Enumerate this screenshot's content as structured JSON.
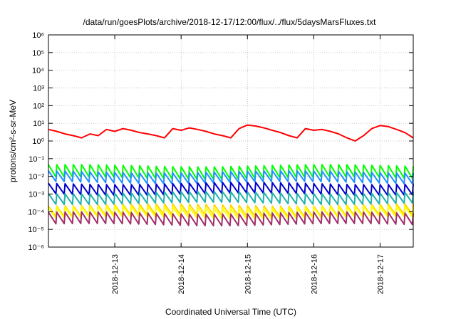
{
  "chart_data": {
    "type": "line",
    "title": "/data/run/goesPlots/archive/2018-12-17/12:00/flux/../flux/5daysMarsFluxes.txt",
    "xlabel": "Coordinated Universal Time (UTC)",
    "ylabel": "protons/cm²-s-sr-MeV",
    "y_scale": "log",
    "ylim": [
      1e-06,
      1000000.0
    ],
    "xlim": [
      "2018-12-12 00:00",
      "2018-12-17 12:00"
    ],
    "y_ticks": [
      {
        "value": 1e-06,
        "label": "10⁻⁶"
      },
      {
        "value": 1e-05,
        "label": "10⁻⁵"
      },
      {
        "value": 0.0001,
        "label": "10⁻⁴"
      },
      {
        "value": 0.001,
        "label": "10⁻³"
      },
      {
        "value": 0.01,
        "label": "10⁻²"
      },
      {
        "value": 0.1,
        "label": "10⁻¹"
      },
      {
        "value": 1,
        "label": "10⁰"
      },
      {
        "value": 10,
        "label": "10¹"
      },
      {
        "value": 100,
        "label": "10²"
      },
      {
        "value": 1000,
        "label": "10³"
      },
      {
        "value": 10000,
        "label": "10⁴"
      },
      {
        "value": 100000,
        "label": "10⁵"
      },
      {
        "value": 1000000,
        "label": "10⁶"
      }
    ],
    "x_ticks": [
      "2018-12-13",
      "2018-12-14",
      "2018-12-15",
      "2018-12-16",
      "2018-12-17"
    ],
    "grid": true,
    "legend": "none",
    "series": [
      {
        "color": "#ff0000",
        "x": [
          "2018-12-12 00:00",
          "2018-12-12 03:00",
          "2018-12-12 06:00",
          "2018-12-12 09:00",
          "2018-12-12 12:00",
          "2018-12-12 15:00",
          "2018-12-12 18:00",
          "2018-12-12 21:00",
          "2018-12-13 00:00",
          "2018-12-13 03:00",
          "2018-12-13 06:00",
          "2018-12-13 09:00",
          "2018-12-13 12:00",
          "2018-12-13 15:00",
          "2018-12-13 18:00",
          "2018-12-13 21:00",
          "2018-12-14 00:00",
          "2018-12-14 03:00",
          "2018-12-14 06:00",
          "2018-12-14 09:00",
          "2018-12-14 12:00",
          "2018-12-14 15:00",
          "2018-12-14 18:00",
          "2018-12-14 21:00",
          "2018-12-15 00:00",
          "2018-12-15 03:00",
          "2018-12-15 06:00",
          "2018-12-15 09:00",
          "2018-12-15 12:00",
          "2018-12-15 15:00",
          "2018-12-15 18:00",
          "2018-12-15 21:00",
          "2018-12-16 00:00",
          "2018-12-16 03:00",
          "2018-12-16 06:00",
          "2018-12-16 09:00",
          "2018-12-16 12:00",
          "2018-12-16 15:00",
          "2018-12-16 18:00",
          "2018-12-16 21:00",
          "2018-12-17 00:00",
          "2018-12-17 03:00",
          "2018-12-17 06:00",
          "2018-12-17 09:00",
          "2018-12-17 12:00"
        ],
        "values": [
          4.5,
          3.5,
          2.5,
          2.0,
          1.5,
          2.5,
          2.0,
          4.5,
          3.5,
          5.0,
          4.0,
          3.0,
          2.5,
          2.0,
          1.5,
          5.0,
          4.0,
          5.5,
          4.5,
          3.5,
          2.5,
          2.0,
          1.5,
          5.0,
          8.0,
          7.0,
          5.5,
          4.0,
          3.0,
          2.0,
          1.5,
          5.0,
          4.0,
          4.5,
          3.5,
          2.5,
          1.5,
          1.0,
          2.0,
          5.0,
          7.5,
          6.5,
          4.5,
          3.0,
          1.5
        ]
      },
      {
        "color": "#00ff00",
        "base": 0.018,
        "amp": 0.7
      },
      {
        "color": "#1e90ff",
        "base": 0.009,
        "amp": 0.6
      },
      {
        "color": "#0000cd",
        "base": 0.002,
        "amp": 0.6
      },
      {
        "color": "#20b2aa",
        "base": 0.0006,
        "amp": 0.6
      },
      {
        "color": "#ffd700",
        "base": 0.00012,
        "amp": 0.6
      },
      {
        "color": "#ffff00",
        "base": 9e-05,
        "amp": 0.6
      },
      {
        "color": "#a0306a",
        "base": 4e-05,
        "amp": 0.65
      }
    ]
  }
}
